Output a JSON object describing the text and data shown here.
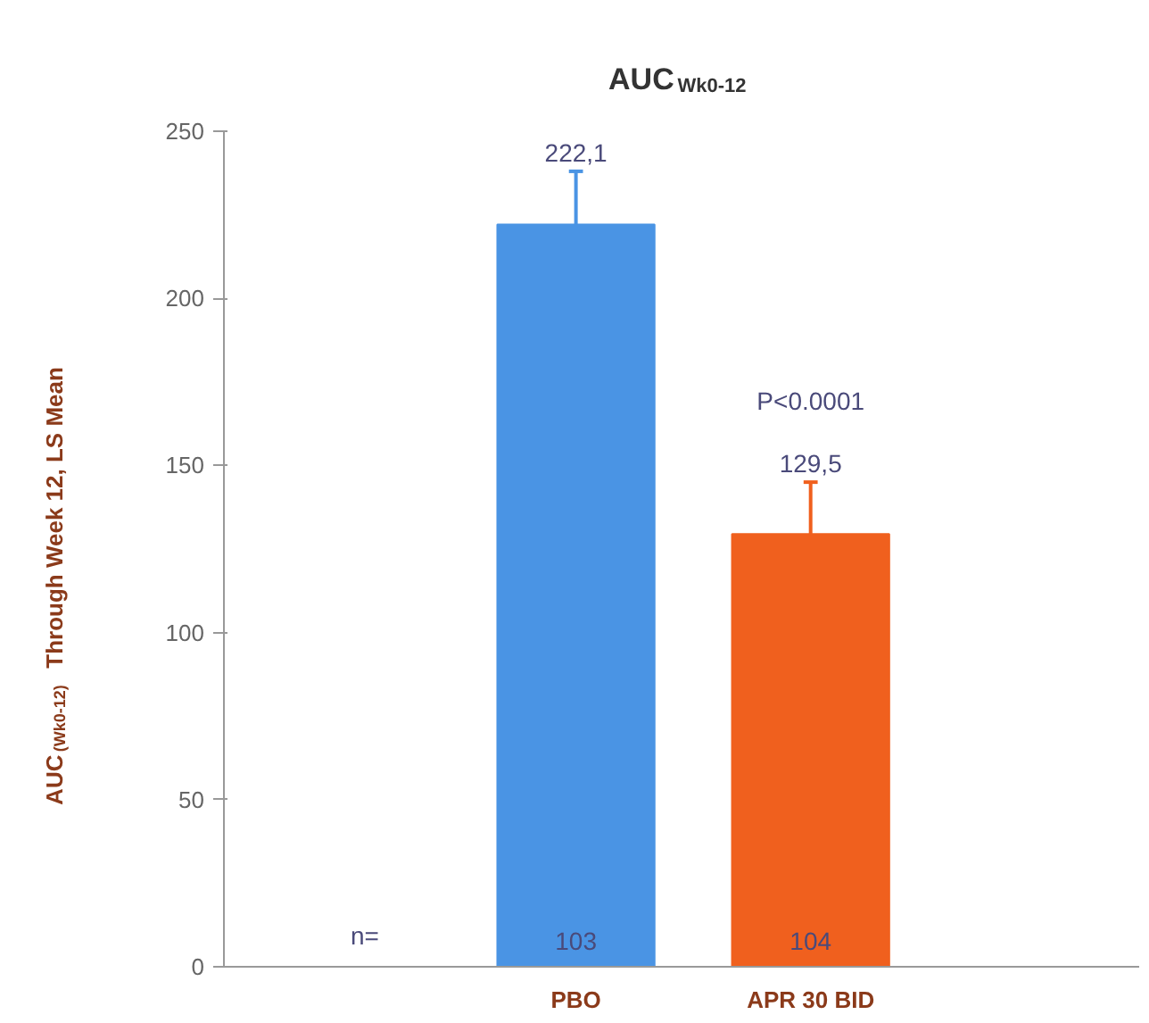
{
  "chart_data": {
    "type": "bar",
    "title": "AUC$_{Wk0-12}$",
    "ylabel": "AUC$_{(Wk0-12)}$ Through Week 12, LS Mean",
    "categories": [
      "PBO",
      "APR 30 BID"
    ],
    "values": [
      222.1,
      129.5
    ],
    "colors": [
      "#4a94e4",
      "#f0601e"
    ],
    "errors": [
      [
        222.1,
        238
      ],
      [
        129.5,
        145
      ]
    ],
    "value_labels": [
      "222,1",
      "129,5"
    ],
    "ylim": [
      0,
      250
    ],
    "yticks": [
      0,
      50,
      100,
      150,
      200,
      250
    ],
    "grid": false,
    "annotations": [
      "n=",
      "103",
      "104",
      "P<0.0001"
    ]
  }
}
